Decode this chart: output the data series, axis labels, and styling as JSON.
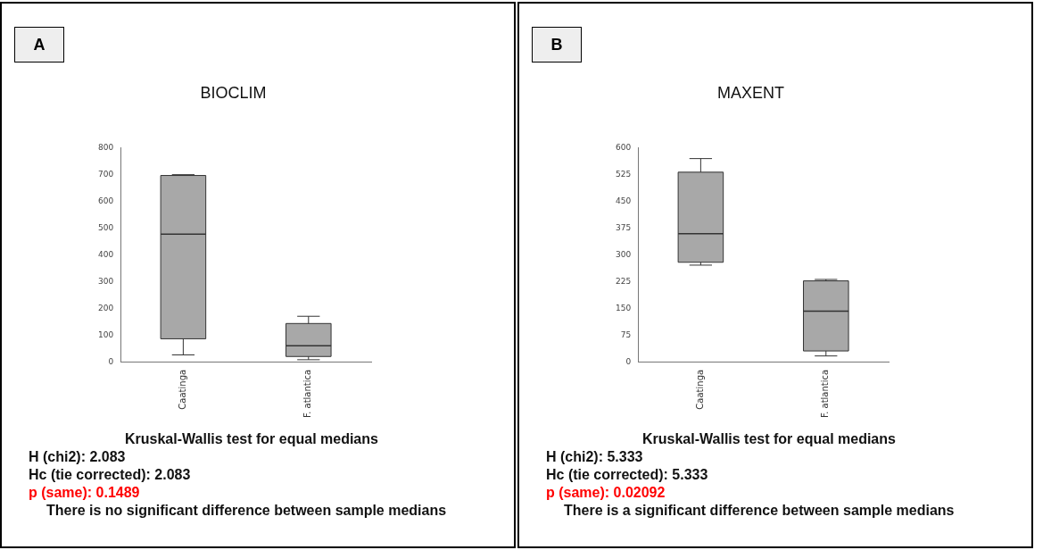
{
  "chart_data": [
    {
      "type": "box",
      "title": "BIOCLIM",
      "categories": [
        "Caatinga",
        "F. atlantica"
      ],
      "color": "#a8a8a8",
      "boxes": [
        {
          "low": 28,
          "q1": 88,
          "median": 478,
          "q3": 697,
          "high": 700
        },
        {
          "low": 10,
          "q1": 22,
          "median": 62,
          "q3": 145,
          "high": 172
        }
      ],
      "ylim": [
        0,
        800
      ],
      "yticks": [
        0,
        100,
        200,
        300,
        400,
        500,
        600,
        700,
        800
      ],
      "grid": false,
      "legend": false,
      "annotations": [
        "A",
        "Kruskal-Wallis test for equal medians",
        "H (chi2): 2.083",
        "Hc (tie corrected): 2.083",
        "p (same): 0.1489",
        "There is no significant difference between sample medians"
      ]
    },
    {
      "type": "box",
      "title": "MAXENT",
      "categories": [
        "Caatinga",
        "F. atlantica"
      ],
      "color": "#a8a8a8",
      "boxes": [
        {
          "low": 272,
          "q1": 280,
          "median": 360,
          "q3": 532,
          "high": 570
        },
        {
          "low": 18,
          "q1": 32,
          "median": 143,
          "q3": 228,
          "high": 232
        }
      ],
      "ylim": [
        0,
        600
      ],
      "yticks": [
        0,
        75,
        150,
        225,
        300,
        375,
        450,
        525,
        600
      ],
      "grid": false,
      "legend": false,
      "annotations": [
        "B",
        "Kruskal-Wallis test for equal medians",
        "H (chi2): 5.333",
        "Hc (tie corrected): 5.333",
        "p (same): 0.02092",
        "There is a significant difference between sample medians"
      ]
    }
  ]
}
